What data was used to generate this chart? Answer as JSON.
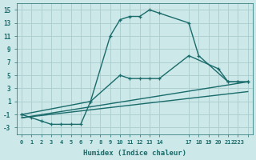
{
  "xlabel": "Humidex (Indice chaleur)",
  "bg_color": "#cce8e8",
  "grid_color": "#aacccc",
  "line_color": "#1a6b6b",
  "xlim": [
    -0.5,
    23.5
  ],
  "ylim": [
    -4,
    16
  ],
  "xticks": [
    0,
    1,
    2,
    3,
    4,
    5,
    6,
    7,
    8,
    9,
    10,
    11,
    12,
    13,
    14,
    17,
    18,
    19,
    20,
    21,
    22,
    23
  ],
  "xtick_labels": [
    "0",
    "1",
    "2",
    "3",
    "4",
    "5",
    "6",
    "7",
    "8",
    "9",
    "10",
    "11",
    "12",
    "13",
    "14",
    "17",
    "18",
    "19",
    "20",
    "21",
    "2223",
    ""
  ],
  "yticks": [
    -3,
    -1,
    1,
    3,
    5,
    7,
    9,
    11,
    13,
    15
  ],
  "series": [
    {
      "x": [
        0,
        1,
        2,
        3,
        4,
        5,
        6,
        7,
        9,
        10,
        11,
        12,
        13,
        14,
        17,
        18,
        21,
        22,
        23
      ],
      "y": [
        -1,
        -1.5,
        -2,
        -2.5,
        -2.5,
        -2.5,
        -2.5,
        1,
        11,
        13.5,
        14,
        14,
        15,
        14.5,
        13,
        8,
        4,
        4,
        4
      ],
      "marker": true,
      "lw": 1.0
    },
    {
      "x": [
        0,
        7,
        10,
        11,
        12,
        13,
        14,
        17,
        20,
        21,
        22,
        23
      ],
      "y": [
        -1,
        1,
        5,
        4.5,
        4.5,
        4.5,
        4.5,
        8,
        6,
        4,
        4,
        4
      ],
      "marker": true,
      "lw": 1.0
    },
    {
      "x": [
        0,
        23
      ],
      "y": [
        -1.5,
        4
      ],
      "marker": false,
      "lw": 1.0
    },
    {
      "x": [
        0,
        23
      ],
      "y": [
        -1.5,
        2.5
      ],
      "marker": false,
      "lw": 1.0
    }
  ]
}
